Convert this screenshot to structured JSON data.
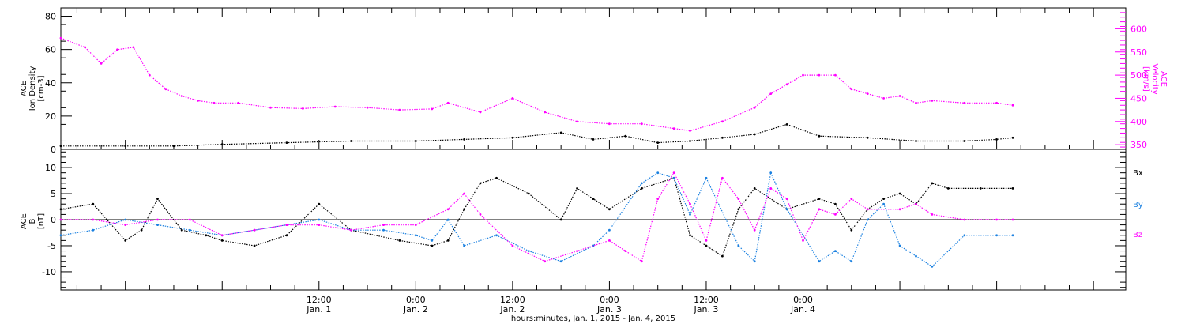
{
  "chart_data": [
    {
      "type": "scatter",
      "panel": "top",
      "y_left_label": [
        "ACE",
        "Ion Density",
        "[cm-3]"
      ],
      "y_right_label": [
        "ACE",
        "Velocity",
        "[km/s]"
      ],
      "ylim_left": [
        0,
        85
      ],
      "ylim_right": [
        340,
        645
      ],
      "yticks_left": [
        "0",
        "20",
        "40",
        "60",
        "80"
      ],
      "yticks_right": [
        "350",
        "400",
        "450",
        "500",
        "550",
        "600"
      ],
      "series": [
        {
          "axis": "left",
          "color": "#000000",
          "x": [
            -20,
            -12,
            -6,
            0,
            8,
            16,
            24,
            30,
            36,
            42,
            46,
            50,
            54,
            58,
            62,
            66,
            70,
            74,
            80,
            86,
            92,
            96,
            98
          ],
          "values": [
            2,
            2,
            2,
            3,
            4,
            5,
            5,
            6,
            7,
            10,
            6,
            8,
            4,
            5,
            7,
            9,
            15,
            8,
            7,
            5,
            5,
            6,
            7
          ]
        },
        {
          "axis": "right",
          "color": "#ff00ff",
          "x": [
            -20,
            -17,
            -15,
            -13,
            -11,
            -9,
            -7,
            -5,
            -3,
            -1,
            2,
            6,
            10,
            14,
            18,
            22,
            26,
            28,
            32,
            36,
            40,
            44,
            48,
            52,
            56,
            58,
            62,
            66,
            68,
            70,
            72,
            74,
            76,
            78,
            80,
            82,
            84,
            86,
            88,
            92,
            96,
            98
          ],
          "values": [
            580,
            560,
            525,
            555,
            560,
            500,
            470,
            455,
            445,
            440,
            440,
            430,
            428,
            432,
            430,
            425,
            427,
            440,
            420,
            450,
            420,
            400,
            395,
            395,
            385,
            380,
            400,
            430,
            460,
            480,
            500,
            500,
            500,
            470,
            460,
            450,
            455,
            440,
            445,
            440,
            440,
            435
          ]
        }
      ]
    },
    {
      "type": "scatter",
      "panel": "bottom",
      "y_label": [
        "ACE",
        "B",
        "[nT]"
      ],
      "ylim": [
        -13.5,
        13.5
      ],
      "yticks": [
        "-10",
        "-5",
        "0",
        "5",
        "10"
      ],
      "series": [
        {
          "name": "Bx",
          "color": "#000000",
          "x": [
            -20,
            -16,
            -12,
            -10,
            -8,
            -5,
            -2,
            0,
            4,
            8,
            12,
            16,
            22,
            26,
            28,
            30,
            32,
            34,
            38,
            42,
            44,
            46,
            48,
            52,
            56,
            58,
            60,
            62,
            64,
            66,
            70,
            74,
            76,
            78,
            80,
            82,
            84,
            86,
            88,
            90,
            94,
            98
          ],
          "values": [
            2,
            3,
            -4,
            -2,
            4,
            -2,
            -3,
            -4,
            -5,
            -3,
            3,
            -2,
            -4,
            -5,
            -4,
            2,
            7,
            8,
            5,
            0,
            6,
            4,
            2,
            6,
            8,
            -3,
            -5,
            -7,
            2,
            6,
            2,
            4,
            3,
            -2,
            2,
            4,
            5,
            3,
            7,
            6,
            6,
            6
          ]
        },
        {
          "name": "By",
          "color": "#1a80e0",
          "x": [
            -20,
            -16,
            -12,
            -8,
            -4,
            0,
            4,
            8,
            12,
            16,
            20,
            24,
            26,
            28,
            30,
            34,
            38,
            42,
            46,
            48,
            52,
            54,
            56,
            58,
            60,
            64,
            66,
            68,
            70,
            74,
            76,
            78,
            80,
            82,
            84,
            86,
            88,
            92,
            96,
            98
          ],
          "values": [
            -3,
            -2,
            0,
            -1,
            -2,
            -3,
            -2,
            -1,
            0,
            -2,
            -2,
            -3,
            -4,
            0,
            -5,
            -3,
            -6,
            -8,
            -5,
            -2,
            7,
            9,
            8,
            1,
            8,
            -5,
            -8,
            9,
            2,
            -8,
            -6,
            -8,
            0,
            3,
            -5,
            -7,
            -9,
            -3,
            -3,
            -3
          ]
        },
        {
          "name": "Bz",
          "color": "#ff00ff",
          "x": [
            -20,
            -16,
            -12,
            -8,
            -4,
            0,
            4,
            8,
            12,
            16,
            20,
            24,
            28,
            30,
            32,
            36,
            40,
            44,
            48,
            50,
            52,
            54,
            56,
            58,
            60,
            62,
            64,
            66,
            68,
            70,
            72,
            74,
            76,
            78,
            80,
            84,
            86,
            88,
            92,
            96,
            98
          ],
          "values": [
            0,
            0,
            -1,
            0,
            0,
            -3,
            -2,
            -1,
            -1,
            -2,
            -1,
            -1,
            2,
            5,
            1,
            -5,
            -8,
            -6,
            -4,
            -6,
            -8,
            4,
            9,
            3,
            -4,
            8,
            4,
            -2,
            6,
            4,
            -4,
            2,
            1,
            4,
            2,
            2,
            3,
            1,
            0,
            0,
            0
          ]
        }
      ],
      "legend": [
        "Bx",
        "By",
        "Bz"
      ]
    }
  ],
  "xaxis": {
    "xlim": [
      -20,
      112
    ],
    "major_ticks": [
      {
        "x": 12,
        "time": "12:00",
        "date": "Jan. 1"
      },
      {
        "x": 24,
        "time": "0:00",
        "date": "Jan. 2"
      },
      {
        "x": 36,
        "time": "12:00",
        "date": "Jan. 2"
      },
      {
        "x": 48,
        "time": "0:00",
        "date": "Jan. 3"
      },
      {
        "x": 60,
        "time": "12:00",
        "date": "Jan. 3"
      },
      {
        "x": 72,
        "time": "0:00",
        "date": "Jan. 4"
      }
    ],
    "title": "hours:minutes, Jan.  1, 2015 - Jan.  4, 2015"
  }
}
